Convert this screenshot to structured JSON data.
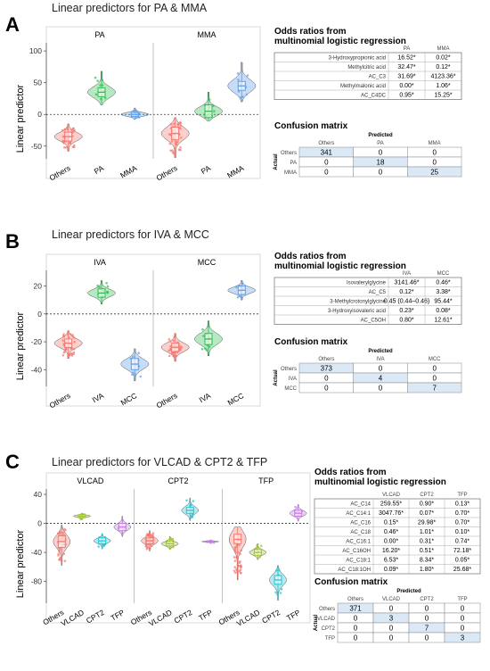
{
  "panels": [
    {
      "letter": "A",
      "title": "Linear predictors for PA & MMA",
      "ylabel": "Linear predictor",
      "ylim": [
        -70,
        110
      ],
      "yticks": [
        -50,
        0,
        50,
        100
      ],
      "facets": [
        "PA",
        "MMA"
      ],
      "categories": [
        "Others",
        "PA",
        "MMA"
      ],
      "colors": [
        "#f4766d",
        "#2ebd4e",
        "#5b9ef0"
      ],
      "chart_data": {
        "type": "violin",
        "facets": [
          {
            "name": "PA",
            "series": [
              {
                "name": "Others",
                "median": -35,
                "q1": -42,
                "q3": -28,
                "min": -58,
                "max": -15
              },
              {
                "name": "PA",
                "median": 35,
                "q1": 28,
                "q3": 42,
                "min": 15,
                "max": 68
              },
              {
                "name": "MMA",
                "median": 0,
                "q1": -3,
                "q3": 3,
                "min": -8,
                "max": 10
              }
            ]
          },
          {
            "name": "MMA",
            "series": [
              {
                "name": "Others",
                "median": -30,
                "q1": -40,
                "q3": -20,
                "min": -68,
                "max": -5
              },
              {
                "name": "PA",
                "median": 5,
                "q1": -5,
                "q3": 15,
                "min": -10,
                "max": 35
              },
              {
                "name": "MMA",
                "median": 45,
                "q1": 38,
                "q3": 52,
                "min": 20,
                "max": 82
              }
            ]
          }
        ]
      },
      "odds": {
        "heading": [
          "Odds ratios from",
          "multinomial logistic regression"
        ],
        "cols": [
          "PA",
          "MMA"
        ],
        "rows": [
          {
            "name": "3-Hydroxypropionic acid",
            "vals": [
              "16.52*",
              "0.02*"
            ]
          },
          {
            "name": "Methylcitric acid",
            "vals": [
              "32.47*",
              "0.12*"
            ]
          },
          {
            "name": "AC_C3",
            "vals": [
              "31.69*",
              "4123.36*"
            ]
          },
          {
            "name": "Methylmalonic acid",
            "vals": [
              "0.00*",
              "1.06*"
            ]
          },
          {
            "name": "AC_C4DC",
            "vals": [
              "0.95*",
              "15.25*"
            ]
          }
        ]
      },
      "confusion": {
        "heading": "Confusion matrix",
        "predicted": "Predicted",
        "actual": "Actual",
        "labels": [
          "Others",
          "PA",
          "MMA"
        ],
        "matrix": [
          [
            341,
            0,
            0
          ],
          [
            0,
            18,
            0
          ],
          [
            0,
            0,
            25
          ]
        ]
      }
    },
    {
      "letter": "B",
      "title": "Linear predictors for IVA & MCC",
      "ylabel": "Linear predictor",
      "ylim": [
        -52,
        30
      ],
      "yticks": [
        -40,
        -20,
        0,
        20
      ],
      "facets": [
        "IVA",
        "MCC"
      ],
      "categories": [
        "Others",
        "IVA",
        "MCC"
      ],
      "colors": [
        "#f4766d",
        "#2ebd4e",
        "#5b9ef0"
      ],
      "chart_data": {
        "type": "violin",
        "facets": [
          {
            "name": "IVA",
            "series": [
              {
                "name": "Others",
                "median": -21,
                "q1": -24,
                "q3": -18,
                "min": -32,
                "max": -12
              },
              {
                "name": "IVA",
                "median": 15,
                "q1": 12,
                "q3": 18,
                "min": 7,
                "max": 24
              },
              {
                "name": "MCC",
                "median": -36,
                "q1": -40,
                "q3": -32,
                "min": -48,
                "max": -25
              }
            ]
          },
          {
            "name": "MCC",
            "series": [
              {
                "name": "Others",
                "median": -24,
                "q1": -27,
                "q3": -21,
                "min": -34,
                "max": -14
              },
              {
                "name": "IVA",
                "median": -18,
                "q1": -22,
                "q3": -14,
                "min": -30,
                "max": -5
              },
              {
                "name": "MCC",
                "median": 17,
                "q1": 14,
                "q3": 20,
                "min": 10,
                "max": 24
              }
            ]
          }
        ]
      },
      "odds": {
        "heading": [
          "Odds ratios from",
          "multinomial logistic regression"
        ],
        "cols": [
          "IVA",
          "MCC"
        ],
        "rows": [
          {
            "name": "Isovalerylglycine",
            "vals": [
              "3141.46*",
              "0.46*"
            ]
          },
          {
            "name": "AC_C5",
            "vals": [
              "0.12*",
              "3.38*"
            ]
          },
          {
            "name": "3-Methylcrotonylglycine",
            "vals": [
              "0.45 (0.44–0.46)",
              "95.44*"
            ]
          },
          {
            "name": "3-Hydroxyisovaleric acid",
            "vals": [
              "0.23*",
              "0.08*"
            ]
          },
          {
            "name": "AC_C5OH",
            "vals": [
              "0.80*",
              "12.61*"
            ]
          }
        ]
      },
      "confusion": {
        "heading": "Confusion matrix",
        "predicted": "Predicted",
        "actual": "Actual",
        "labels": [
          "Others",
          "IVA",
          "MCC"
        ],
        "matrix": [
          [
            373,
            0,
            0
          ],
          [
            0,
            4,
            0
          ],
          [
            0,
            0,
            7
          ]
        ]
      }
    },
    {
      "letter": "C",
      "title": "Linear predictors for VLCAD & CPT2 & TFP",
      "ylabel": "Linear predictor",
      "ylim": [
        -110,
        45
      ],
      "yticks": [
        -80,
        -40,
        0,
        40
      ],
      "facets": [
        "VLCAD",
        "CPT2",
        "TFP"
      ],
      "categories": [
        "Others",
        "VLCAD",
        "CPT2",
        "TFP"
      ],
      "colors": [
        "#f4766d",
        "#9fc42a",
        "#22c3d0",
        "#c97de8"
      ],
      "chart_data": {
        "type": "violin",
        "facets": [
          {
            "name": "VLCAD",
            "series": [
              {
                "name": "Others",
                "median": -25,
                "q1": -33,
                "q3": -17,
                "min": -58,
                "max": -2
              },
              {
                "name": "VLCAD",
                "median": 10,
                "q1": 8,
                "q3": 12,
                "min": 5,
                "max": 14
              },
              {
                "name": "CPT2",
                "median": -24,
                "q1": -28,
                "q3": -20,
                "min": -35,
                "max": -14
              },
              {
                "name": "TFP",
                "median": -5,
                "q1": -10,
                "q3": 0,
                "min": -18,
                "max": 10
              }
            ]
          },
          {
            "name": "CPT2",
            "series": [
              {
                "name": "Others",
                "median": -24,
                "q1": -28,
                "q3": -20,
                "min": -38,
                "max": -10
              },
              {
                "name": "VLCAD",
                "median": -28,
                "q1": -31,
                "q3": -25,
                "min": -36,
                "max": -18
              },
              {
                "name": "CPT2",
                "median": 18,
                "q1": 14,
                "q3": 22,
                "min": 4,
                "max": 35
              },
              {
                "name": "TFP",
                "median": -25,
                "q1": -26,
                "q3": -24,
                "min": -27,
                "max": -23
              }
            ]
          },
          {
            "name": "TFP",
            "series": [
              {
                "name": "Others",
                "median": -22,
                "q1": -28,
                "q3": -15,
                "min": -78,
                "max": -5
              },
              {
                "name": "VLCAD",
                "median": -40,
                "q1": -44,
                "q3": -36,
                "min": -50,
                "max": -28
              },
              {
                "name": "CPT2",
                "median": -78,
                "q1": -84,
                "q3": -72,
                "min": -106,
                "max": -58
              },
              {
                "name": "TFP",
                "median": 14,
                "q1": 10,
                "q3": 18,
                "min": 3,
                "max": 26
              }
            ]
          }
        ]
      },
      "odds": {
        "heading": [
          "Odds ratios from",
          "multinomial logistic regression"
        ],
        "cols": [
          "VLCAD",
          "CPT2",
          "TFP"
        ],
        "rows": [
          {
            "name": "AC_C14",
            "vals": [
              "259.55*",
              "0.90*",
              "0.13*"
            ]
          },
          {
            "name": "AC_C14:1",
            "vals": [
              "3047.76*",
              "0.07*",
              "0.70*"
            ]
          },
          {
            "name": "AC_C16",
            "vals": [
              "0.15*",
              "29.98*",
              "0.70*"
            ]
          },
          {
            "name": "AC_C18",
            "vals": [
              "0.46*",
              "1.01*",
              "0.10*"
            ]
          },
          {
            "name": "AC_C16:1",
            "vals": [
              "0.00*",
              "0.31*",
              "0.74*"
            ]
          },
          {
            "name": "AC_C16OH",
            "vals": [
              "16.20*",
              "0.51*",
              "72.18*"
            ]
          },
          {
            "name": "AC_C18:1",
            "vals": [
              "6.53*",
              "8.34*",
              "0.05*"
            ]
          },
          {
            "name": "AC_C18:1OH",
            "vals": [
              "0.09*",
              "1.80*",
              "25.68*"
            ]
          }
        ]
      },
      "confusion": {
        "heading": "Confusion matrix",
        "predicted": "Predicted",
        "actual": "Actual",
        "labels": [
          "Others",
          "VLCAD",
          "CPT2",
          "TFP"
        ],
        "matrix": [
          [
            371,
            0,
            0,
            0
          ],
          [
            0,
            3,
            0,
            0
          ],
          [
            0,
            0,
            7,
            0
          ],
          [
            0,
            0,
            0,
            3
          ]
        ]
      }
    }
  ]
}
